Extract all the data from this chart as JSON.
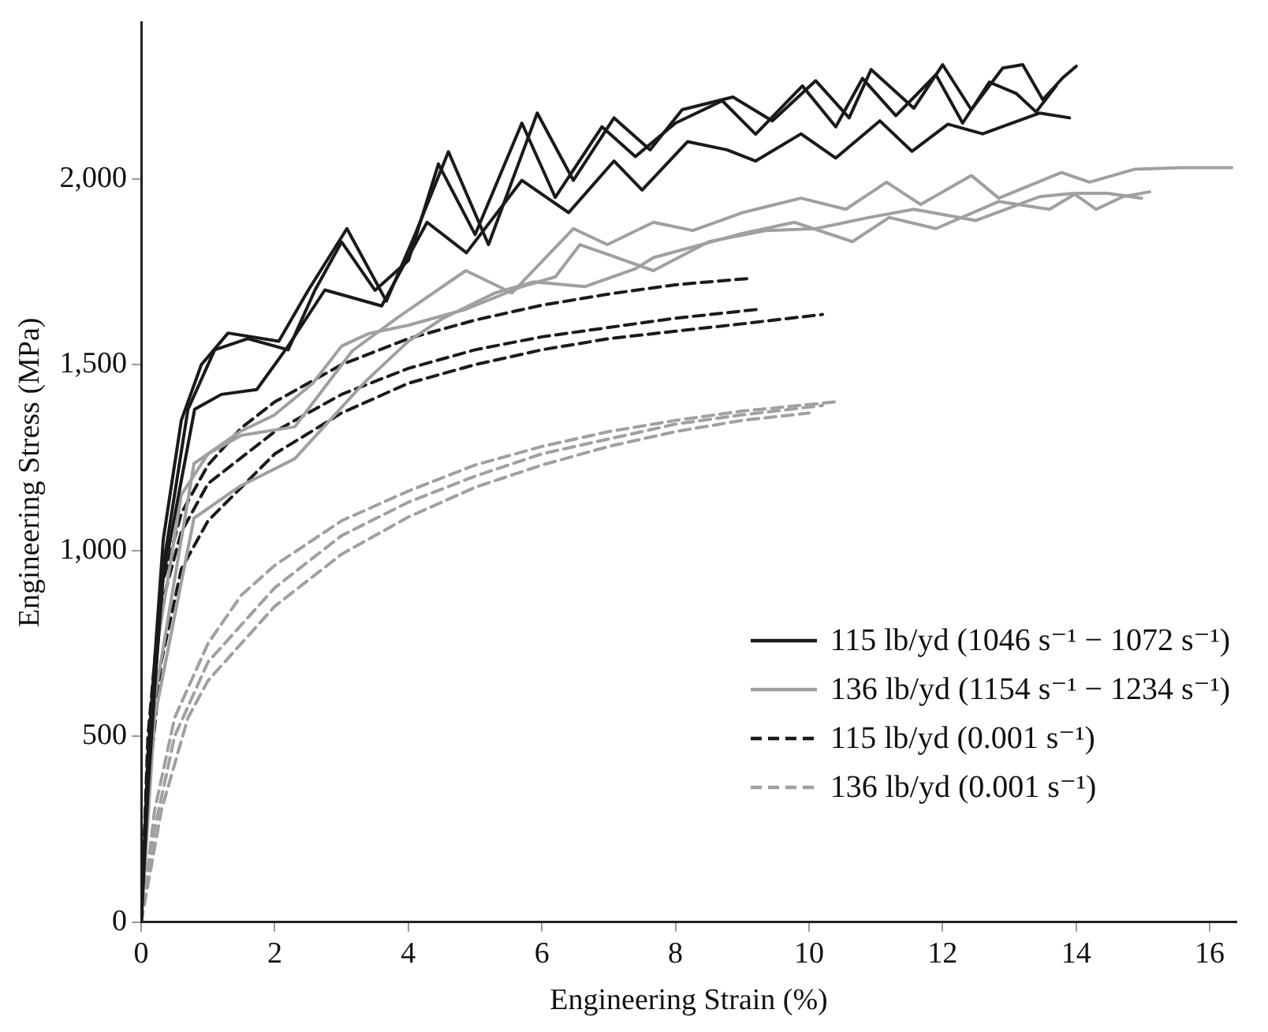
{
  "chart_data": {
    "type": "line",
    "xlabel": "Engineering Strain (%)",
    "ylabel": "Engineering Stress (MPa)",
    "xlim": [
      0,
      16.4
    ],
    "xticks": [
      0,
      2,
      4,
      6,
      8,
      10,
      12,
      14,
      16
    ],
    "ylim": [
      0,
      2420
    ],
    "yticks": [
      0,
      500,
      {
        "value": 1000,
        "label": "1,000"
      },
      {
        "value": 1500,
        "label": "1,500"
      },
      {
        "value": 2000,
        "label": "2,000"
      }
    ],
    "grid": false,
    "legend": "bottom right",
    "marker": "none",
    "series": [
      {
        "name": "115 lb/yd (1046 s⁻¹ − 1072 s⁻¹)",
        "color": "#1a1a1a",
        "line_style": "solid",
        "x": [
          0,
          0.1,
          0.33,
          0.6,
          0.9,
          1.3,
          2.06,
          2.5,
          3.08,
          3.67,
          4.1,
          4.6,
          5.2,
          5.93,
          6.47,
          7.08,
          7.62,
          8.1,
          8.86,
          9.45,
          10.1,
          10.6,
          10.93,
          11.57,
          12.0,
          12.43,
          12.9,
          13.2,
          13.5,
          13.8,
          14.0
        ],
        "values": [
          0,
          450,
          1030,
          1350,
          1500,
          1585,
          1563,
          1700,
          1866,
          1671,
          1850,
          2073,
          1823,
          2177,
          1996,
          2164,
          2078,
          2186,
          2220,
          2156,
          2264,
          2164,
          2294,
          2190,
          2307,
          2186,
          2298,
          2307,
          2213,
          2272,
          2303
        ]
      },
      {
        "color": "#1a1a1a",
        "line_style": "solid",
        "x": [
          0,
          0.1,
          0.35,
          0.7,
          1.1,
          1.6,
          2.2,
          2.6,
          3.0,
          3.5,
          4.0,
          4.45,
          5.0,
          5.7,
          6.2,
          6.9,
          7.4,
          8.0,
          8.7,
          9.2,
          9.9,
          10.4,
          10.8,
          11.3,
          11.9,
          12.3,
          12.7,
          13.1,
          13.4,
          13.7
        ],
        "values": [
          0,
          400,
          980,
          1380,
          1540,
          1570,
          1540,
          1700,
          1830,
          1700,
          1780,
          2040,
          1850,
          2150,
          1950,
          2140,
          2060,
          2150,
          2210,
          2120,
          2250,
          2140,
          2270,
          2170,
          2280,
          2150,
          2260,
          2230,
          2180,
          2250
        ]
      },
      {
        "color": "#1a1a1a",
        "line_style": "solid",
        "x": [
          0,
          0.1,
          0.3,
          0.8,
          1.2,
          1.73,
          2.2,
          2.75,
          3.6,
          4.28,
          4.87,
          5.7,
          6.4,
          7.08,
          7.5,
          8.18,
          8.77,
          9.2,
          9.88,
          10.4,
          11.06,
          11.54,
          12.08,
          12.6,
          13.45,
          13.9
        ],
        "values": [
          0,
          350,
          900,
          1380,
          1420,
          1433,
          1550,
          1701,
          1658,
          1883,
          1801,
          1996,
          1909,
          2048,
          1970,
          2100,
          2078,
          2048,
          2121,
          2056,
          2156,
          2074,
          2147,
          2121,
          2177,
          2164
        ]
      },
      {
        "name": "136 lb/yd (1154 s⁻¹ − 1234 s⁻¹)",
        "color": "#a0a0a0",
        "line_style": "solid",
        "x": [
          0,
          0.2,
          0.6,
          1.0,
          1.5,
          2.3,
          3.16,
          3.85,
          4.86,
          5.55,
          6.47,
          6.98,
          7.67,
          8.26,
          9.0,
          9.88,
          10.55,
          11.16,
          11.67,
          12.43,
          12.84,
          13.78,
          14.2,
          14.88,
          15.57,
          16.33
        ],
        "values": [
          0,
          700,
          1150,
          1260,
          1310,
          1333,
          1537,
          1628,
          1753,
          1693,
          1866,
          1823,
          1883,
          1861,
          1909,
          1948,
          1918,
          1991,
          1931,
          2009,
          1948,
          2017,
          1991,
          2026,
          2030,
          2030
        ]
      },
      {
        "color": "#a0a0a0",
        "line_style": "solid",
        "x": [
          0,
          0.2,
          0.79,
          1.48,
          1.99,
          2.57,
          3.0,
          3.41,
          4.0,
          4.86,
          5.7,
          6.2,
          6.57,
          7.67,
          8.5,
          9.36,
          10.1,
          10.9,
          11.57,
          12.5,
          13.45,
          13.96,
          14.3,
          14.7,
          15.1
        ],
        "values": [
          0,
          600,
          1234,
          1320,
          1364,
          1450,
          1550,
          1584,
          1606,
          1649,
          1710,
          1736,
          1823,
          1753,
          1831,
          1861,
          1866,
          1896,
          1918,
          1888,
          1952,
          1961,
          1918,
          1952,
          1965
        ]
      },
      {
        "color": "#a0a0a0",
        "line_style": "solid",
        "x": [
          0,
          0.2,
          0.79,
          1.48,
          2.3,
          3.33,
          4.0,
          4.5,
          5.3,
          5.88,
          6.64,
          7.4,
          7.67,
          9.0,
          9.78,
          10.65,
          11.2,
          11.9,
          12.84,
          13.6,
          14.0,
          14.47,
          14.98
        ],
        "values": [
          0,
          550,
          1087,
          1173,
          1247,
          1450,
          1563,
          1623,
          1693,
          1723,
          1710,
          1758,
          1788,
          1853,
          1883,
          1831,
          1896,
          1866,
          1939,
          1918,
          1961,
          1961,
          1948
        ]
      },
      {
        "name": "115 lb/yd (0.001 s⁻¹)",
        "color": "#1a1a1a",
        "line_style": "dashed",
        "x": [
          0,
          0.1,
          0.3,
          0.6,
          1.0,
          1.5,
          2.0,
          3.0,
          4.0,
          5.0,
          6.0,
          7.0,
          8.0,
          9.1
        ],
        "values": [
          0,
          500,
          900,
          1100,
          1230,
          1330,
          1400,
          1500,
          1570,
          1620,
          1660,
          1690,
          1715,
          1732
        ]
      },
      {
        "color": "#1a1a1a",
        "line_style": "dashed",
        "x": [
          0,
          0.1,
          0.3,
          0.6,
          1.0,
          2.0,
          3.0,
          4.0,
          5.0,
          6.0,
          7.0,
          8.0,
          9.3
        ],
        "values": [
          0,
          450,
          850,
          1050,
          1180,
          1320,
          1420,
          1490,
          1540,
          1575,
          1600,
          1625,
          1650
        ]
      },
      {
        "color": "#1a1a1a",
        "line_style": "dashed",
        "x": [
          0,
          0.1,
          0.3,
          0.6,
          1.0,
          2.0,
          3.0,
          4.0,
          5.0,
          6.0,
          7.0,
          8.0,
          9.0,
          10.2
        ],
        "values": [
          0,
          350,
          700,
          950,
          1080,
          1260,
          1370,
          1450,
          1500,
          1540,
          1570,
          1590,
          1610,
          1635
        ]
      },
      {
        "name": "136 lb/yd (0.001 s⁻¹)",
        "color": "#a0a0a0",
        "line_style": "dashed",
        "x": [
          0,
          0.2,
          0.5,
          1.0,
          1.5,
          2.0,
          3.0,
          4.0,
          5.0,
          6.0,
          7.0,
          8.0,
          9.0,
          10.4
        ],
        "values": [
          0,
          300,
          550,
          750,
          880,
          960,
          1080,
          1160,
          1230,
          1280,
          1320,
          1350,
          1375,
          1400
        ]
      },
      {
        "color": "#a0a0a0",
        "line_style": "dashed",
        "x": [
          0,
          0.2,
          0.5,
          1.0,
          2.0,
          3.0,
          4.0,
          5.0,
          6.0,
          7.0,
          8.0,
          9.0,
          10.2
        ],
        "values": [
          0,
          250,
          500,
          700,
          900,
          1040,
          1130,
          1200,
          1260,
          1300,
          1340,
          1365,
          1390
        ]
      },
      {
        "color": "#a0a0a0",
        "line_style": "dashed",
        "x": [
          0,
          0.3,
          0.7,
          1.0,
          2.0,
          3.0,
          4.0,
          5.0,
          6.0,
          7.0,
          8.0,
          9.0,
          10.0
        ],
        "values": [
          0,
          300,
          550,
          650,
          850,
          990,
          1090,
          1170,
          1230,
          1280,
          1320,
          1350,
          1370
        ]
      }
    ]
  }
}
